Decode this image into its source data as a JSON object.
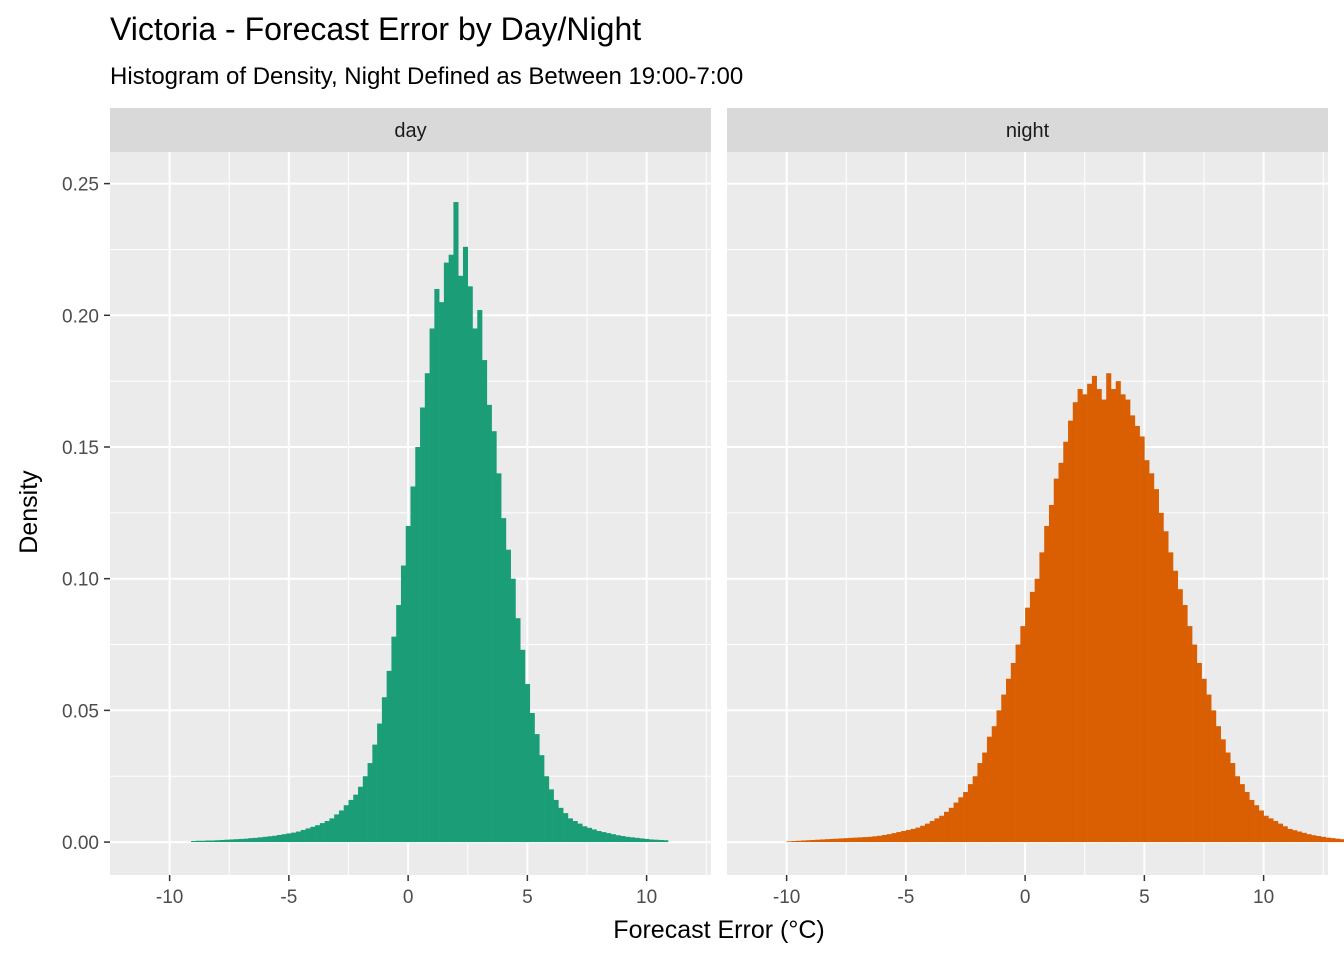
{
  "chart_data": {
    "type": "bar",
    "title": "Victoria - Forecast Error by Day/Night",
    "subtitle": "Histogram of Density, Night Defined as Between 19:00-7:00",
    "xlabel": "Forecast Error (°C)",
    "ylabel": "Density",
    "xlim": [
      -12.5,
      12.7
    ],
    "ylim": [
      -0.0125,
      0.262
    ],
    "x_ticks": [
      -10,
      -5,
      0,
      5,
      10
    ],
    "x_tick_labels": [
      "-10",
      "-5",
      "0",
      "5",
      "10"
    ],
    "y_ticks": [
      0,
      0.05,
      0.1,
      0.15,
      0.2,
      0.25
    ],
    "y_tick_labels": [
      "0.00",
      "0.05",
      "0.10",
      "0.15",
      "0.20",
      "0.25"
    ],
    "grid": true,
    "bin_width": 0.2,
    "panels": [
      {
        "name": "day",
        "color": "#1b9e77",
        "x_start": -9.1,
        "values": [
          0.0004,
          0.0005,
          0.0005,
          0.0006,
          0.0006,
          0.0007,
          0.0008,
          0.0009,
          0.001,
          0.0011,
          0.0012,
          0.0013,
          0.0015,
          0.0016,
          0.0018,
          0.002,
          0.0022,
          0.0024,
          0.0027,
          0.003,
          0.0033,
          0.0036,
          0.004,
          0.0046,
          0.0052,
          0.0058,
          0.0064,
          0.0072,
          0.008,
          0.009,
          0.0105,
          0.012,
          0.014,
          0.016,
          0.018,
          0.021,
          0.025,
          0.03,
          0.037,
          0.045,
          0.055,
          0.065,
          0.078,
          0.09,
          0.105,
          0.12,
          0.135,
          0.15,
          0.165,
          0.178,
          0.195,
          0.21,
          0.205,
          0.22,
          0.223,
          0.243,
          0.215,
          0.226,
          0.211,
          0.195,
          0.202,
          0.183,
          0.166,
          0.156,
          0.14,
          0.123,
          0.111,
          0.1,
          0.085,
          0.073,
          0.06,
          0.049,
          0.041,
          0.033,
          0.025,
          0.02,
          0.016,
          0.013,
          0.011,
          0.009,
          0.008,
          0.007,
          0.006,
          0.0054,
          0.0048,
          0.0042,
          0.0038,
          0.0034,
          0.003,
          0.0026,
          0.0023,
          0.002,
          0.0018,
          0.0016,
          0.0014,
          0.0012,
          0.001,
          0.0009,
          0.0008,
          0.0007
        ]
      },
      {
        "name": "night",
        "color": "#d95f02",
        "x_start": -10.0,
        "values": [
          0.0003,
          0.0004,
          0.0005,
          0.0006,
          0.0007,
          0.0008,
          0.0009,
          0.001,
          0.0011,
          0.0012,
          0.0013,
          0.0014,
          0.0015,
          0.0016,
          0.0017,
          0.0018,
          0.0019,
          0.002,
          0.0022,
          0.0024,
          0.0027,
          0.003,
          0.0034,
          0.0038,
          0.0042,
          0.0046,
          0.005,
          0.0055,
          0.0062,
          0.007,
          0.008,
          0.009,
          0.01,
          0.0115,
          0.013,
          0.015,
          0.017,
          0.019,
          0.022,
          0.025,
          0.03,
          0.034,
          0.04,
          0.044,
          0.05,
          0.056,
          0.062,
          0.068,
          0.075,
          0.082,
          0.089,
          0.095,
          0.1,
          0.11,
          0.12,
          0.128,
          0.138,
          0.144,
          0.152,
          0.16,
          0.167,
          0.172,
          0.17,
          0.174,
          0.177,
          0.172,
          0.168,
          0.178,
          0.172,
          0.175,
          0.17,
          0.168,
          0.162,
          0.158,
          0.154,
          0.145,
          0.14,
          0.134,
          0.125,
          0.118,
          0.11,
          0.103,
          0.096,
          0.09,
          0.082,
          0.075,
          0.068,
          0.062,
          0.056,
          0.05,
          0.044,
          0.039,
          0.034,
          0.03,
          0.025,
          0.022,
          0.019,
          0.016,
          0.014,
          0.012,
          0.01,
          0.009,
          0.008,
          0.007,
          0.006,
          0.005,
          0.0045,
          0.004,
          0.0035,
          0.003,
          0.0026,
          0.0023,
          0.002,
          0.0017,
          0.0015,
          0.0013,
          0.0011,
          0.0009,
          0.0008,
          0.0007,
          0.0006,
          0.0005,
          0.0005,
          0.0004,
          0.0004,
          0.0003,
          0.0003,
          0.0003,
          0.0002,
          0.0002,
          0.0002,
          0.0002,
          0.0001,
          0.0001,
          0.0001,
          0.0001,
          0.0001,
          0.0001,
          0.0001,
          0.0001,
          0.0001,
          0.0001,
          0.0001
        ]
      }
    ]
  }
}
